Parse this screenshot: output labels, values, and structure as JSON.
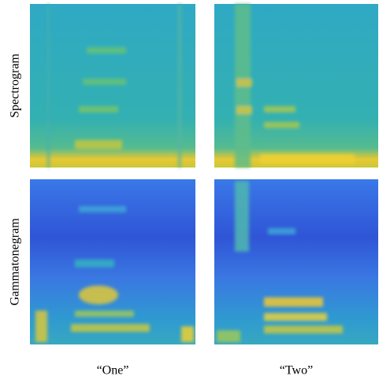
{
  "figure": {
    "row_labels": [
      "Spectrogram",
      "Gammatonegram"
    ],
    "column_labels": [
      "“One”",
      "“Two”"
    ]
  }
}
